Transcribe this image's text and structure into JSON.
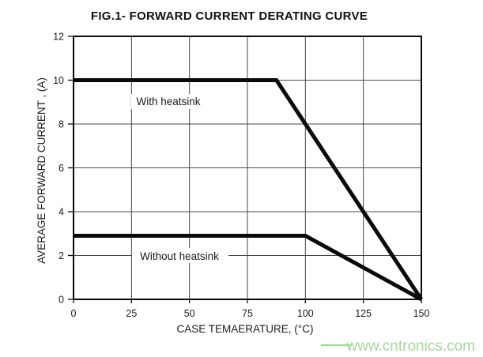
{
  "page": {
    "background": "#ffffff"
  },
  "watermark": {
    "text": "www.cntronics.com",
    "color": "#a9d7a0"
  },
  "chart_data": {
    "type": "line",
    "title": "FIG.1- FORWARD CURRENT DERATING CURVE",
    "xlabel": "CASE TEMAERATURE, (°C)",
    "ylabel": "AVERAGE FORWARD CURRENT , (A)",
    "xlim": [
      0,
      150
    ],
    "ylim": [
      0,
      12
    ],
    "xticks": [
      0,
      25,
      50,
      75,
      100,
      125,
      150
    ],
    "yticks": [
      0,
      2,
      4,
      6,
      8,
      10,
      12
    ],
    "grid": true,
    "legend_position": "inline-labels",
    "line_color": "#0a0a0a",
    "grid_color": "#474747",
    "frame_color": "#0a0a0a",
    "series": [
      {
        "name": "With heatsink",
        "points": [
          [
            0,
            10
          ],
          [
            87.5,
            10
          ],
          [
            150,
            0
          ]
        ]
      },
      {
        "name": "Without heatsink",
        "points": [
          [
            0,
            2.9
          ],
          [
            100,
            2.9
          ],
          [
            150,
            0
          ]
        ]
      }
    ]
  }
}
